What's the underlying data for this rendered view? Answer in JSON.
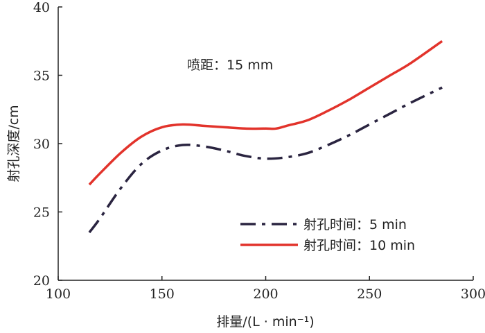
{
  "chart_data": {
    "type": "line",
    "xlabel": "排量/(L · min⁻¹)",
    "ylabel": "射孔深度/cm",
    "xlim": [
      100,
      300
    ],
    "ylim": [
      20,
      40
    ],
    "xticks": [
      100,
      150,
      200,
      250,
      300
    ],
    "yticks": [
      20,
      25,
      30,
      35,
      40
    ],
    "grid": false,
    "legend_position": "bottom-right",
    "annotation": "喷距：15 mm",
    "series": [
      {
        "name": "射孔时间：5 min",
        "color": "#2a2440",
        "line_style": "dash-dot",
        "x": [
          115,
          120,
          130,
          140,
          150,
          160,
          170,
          180,
          190,
          200,
          210,
          220,
          230,
          240,
          250,
          260,
          270,
          285
        ],
        "y": [
          23.5,
          24.5,
          26.7,
          28.5,
          29.5,
          29.9,
          29.8,
          29.5,
          29.1,
          28.9,
          29.0,
          29.3,
          29.9,
          30.6,
          31.4,
          32.2,
          33.0,
          34.1
        ]
      },
      {
        "name": "射孔时间：10 min",
        "color": "#e2332b",
        "line_style": "solid",
        "x": [
          115,
          120,
          130,
          140,
          150,
          160,
          170,
          180,
          190,
          200,
          205,
          210,
          220,
          230,
          240,
          250,
          260,
          270,
          285
        ],
        "y": [
          27.0,
          27.8,
          29.3,
          30.5,
          31.2,
          31.4,
          31.3,
          31.2,
          31.1,
          31.1,
          31.1,
          31.3,
          31.7,
          32.4,
          33.2,
          34.1,
          35.0,
          35.9,
          37.5
        ]
      }
    ]
  }
}
